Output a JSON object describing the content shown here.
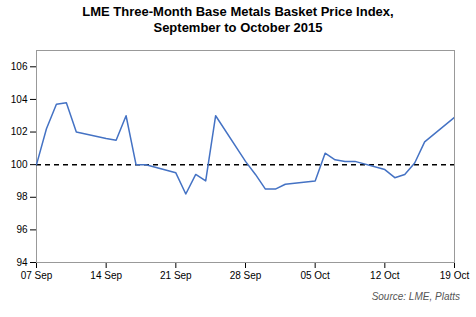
{
  "chart_data": {
    "type": "line",
    "title": "LME Three-Month Base Metals Basket Price Index,\nSeptember to October 2015",
    "annotations": [
      "Source: LME, Platts"
    ],
    "x": [
      0,
      1,
      2,
      3,
      4,
      7,
      8,
      9,
      10,
      11,
      14,
      15,
      16,
      17,
      18,
      21,
      22,
      23,
      24,
      25,
      28,
      29,
      30,
      31,
      32,
      35,
      36,
      37,
      38,
      39,
      42
    ],
    "values": [
      100.0,
      102.2,
      103.7,
      103.8,
      102.0,
      101.6,
      101.5,
      103.0,
      100.0,
      100.0,
      99.5,
      98.2,
      99.4,
      99.0,
      103.0,
      100.2,
      99.4,
      98.5,
      98.5,
      98.8,
      99.0,
      100.7,
      100.3,
      100.2,
      100.2,
      99.7,
      99.2,
      99.4,
      100.1,
      101.4,
      102.9
    ],
    "color": "#4472C4",
    "xlim": [
      0,
      42
    ],
    "xticks": [
      {
        "value": 0,
        "label": "07 Sep"
      },
      {
        "value": 7,
        "label": "14 Sep"
      },
      {
        "value": 14,
        "label": "21 Sep"
      },
      {
        "value": 21,
        "label": "28 Sep"
      },
      {
        "value": 28,
        "label": "05 Oct"
      },
      {
        "value": 35,
        "label": "12 Oct"
      },
      {
        "value": 42,
        "label": "19 Oct"
      }
    ],
    "ylim": [
      94,
      107
    ],
    "yticks": [
      94,
      96,
      98,
      100,
      102,
      104,
      106
    ],
    "hlines": [
      {
        "value": 100,
        "color": "black",
        "line_style": "dashed"
      }
    ],
    "grid": false
  }
}
